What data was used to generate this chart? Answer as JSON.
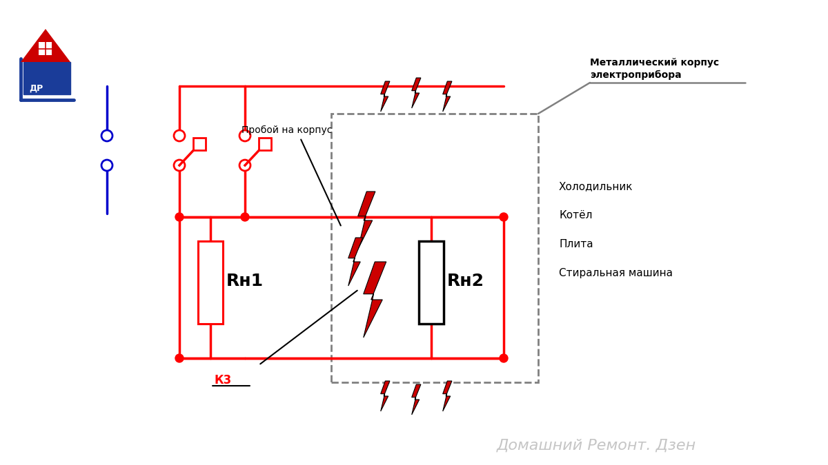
{
  "bg_color": "#ffffff",
  "red": "#ff0000",
  "blue": "#0000cc",
  "gray": "#808080",
  "black": "#000000",
  "title_text": "Домашний Ремонт. Дзен",
  "label_proboi": "Пробой на корпус",
  "label_kz": "К3",
  "label_metal": "Металлический корпус\nэлектроприбора",
  "label_rh1": "Rн1",
  "label_rh2": "Rн2",
  "appliances": [
    "Холодильник",
    "Котёл",
    "Плита",
    "Стиральная машина"
  ]
}
